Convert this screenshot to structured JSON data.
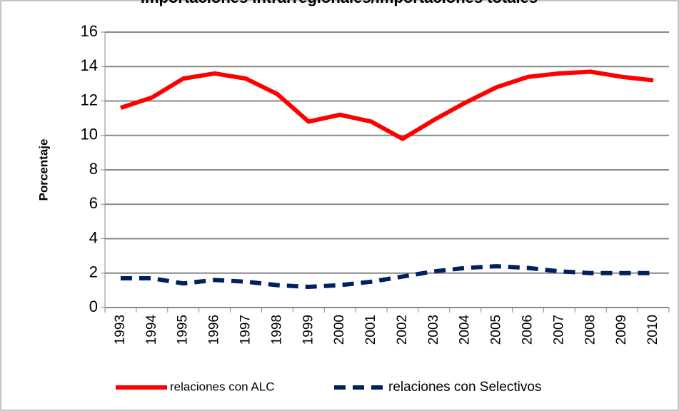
{
  "chart_data": {
    "type": "line",
    "title": "Importaciones intrarregionales/importaciones totales",
    "y_label": "Porcentaje",
    "categories": [
      "1993",
      "1994",
      "1995",
      "1996",
      "1997",
      "1998",
      "1999",
      "2000",
      "2001",
      "2002",
      "2003",
      "2004",
      "2005",
      "2006",
      "2007",
      "2008",
      "2009",
      "2010"
    ],
    "series": [
      {
        "name": "relaciones con ALC",
        "color": "#ff0000",
        "dash": false,
        "values": [
          11.6,
          12.2,
          13.3,
          13.6,
          13.3,
          12.4,
          10.8,
          11.2,
          10.8,
          9.8,
          10.9,
          11.9,
          12.8,
          13.4,
          13.6,
          13.7,
          13.4,
          13.2
        ]
      },
      {
        "name": "relaciones con Selectivos",
        "color": "#002060",
        "dash": true,
        "values": [
          1.7,
          1.7,
          1.4,
          1.6,
          1.5,
          1.3,
          1.2,
          1.3,
          1.5,
          1.8,
          2.1,
          2.3,
          2.4,
          2.3,
          2.1,
          2.0,
          2.0,
          2.0
        ]
      }
    ],
    "ylim": [
      0,
      16
    ],
    "yticks": [
      0,
      2,
      4,
      6,
      8,
      10,
      12,
      14,
      16
    ],
    "grid": true,
    "legend": "bottom"
  }
}
